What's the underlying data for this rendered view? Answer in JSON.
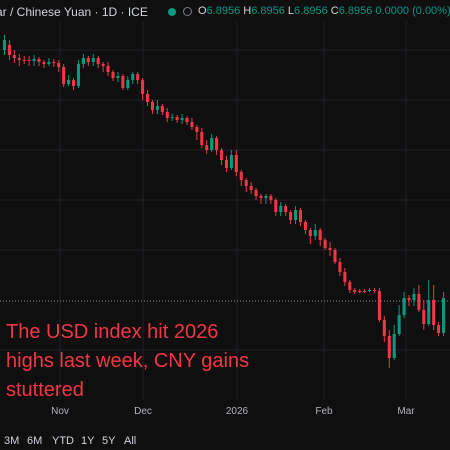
{
  "header": {
    "title": "ar / Chinese Yuan · 1D · ICE",
    "ohlc": [
      {
        "k": "O",
        "v": "6.8956"
      },
      {
        "k": "H",
        "v": "6.8956"
      },
      {
        "k": "L",
        "v": "6.8956"
      },
      {
        "k": "C",
        "v": "6.8956 0.0000 (0.00%)"
      }
    ],
    "icons": [
      "live-dot-icon",
      "status-ring-icon"
    ]
  },
  "annotation": {
    "lines": [
      "The USD index hit 2026",
      "highs last week, CNY gains",
      "stuttered"
    ],
    "color": "#f23645"
  },
  "range_buttons": [
    "3M",
    "6M",
    "YTD",
    "1Y",
    "5Y",
    "All"
  ],
  "colors": {
    "up": "#089981",
    "down": "#f23645",
    "bg": "#0f0f10",
    "grid": "#1e2026"
  },
  "chart_data": {
    "type": "candlestick",
    "x_ticks": [
      "Nov",
      "Dec",
      "2026",
      "Feb",
      "Mar"
    ],
    "last_close": 6.8956,
    "price_line_dotted": true,
    "grid": true,
    "candles": [
      [
        50,
        40,
        35,
        55
      ],
      [
        45,
        55,
        40,
        60
      ],
      [
        55,
        58,
        50,
        63
      ],
      [
        58,
        60,
        54,
        66
      ],
      [
        60,
        60,
        56,
        64
      ],
      [
        60,
        61,
        56,
        66
      ],
      [
        61,
        59,
        55,
        66
      ],
      [
        59,
        62,
        57,
        66
      ],
      [
        62,
        64,
        60,
        68
      ],
      [
        64,
        62,
        58,
        66
      ],
      [
        62,
        63,
        59,
        67
      ],
      [
        63,
        67,
        60,
        72
      ],
      [
        67,
        84,
        64,
        87
      ],
      [
        84,
        80,
        75,
        86
      ],
      [
        80,
        86,
        78,
        90
      ],
      [
        86,
        64,
        60,
        88
      ],
      [
        64,
        58,
        54,
        68
      ],
      [
        58,
        62,
        56,
        66
      ],
      [
        62,
        58,
        54,
        66
      ],
      [
        58,
        64,
        56,
        68
      ],
      [
        64,
        66,
        62,
        72
      ],
      [
        66,
        72,
        62,
        76
      ],
      [
        72,
        78,
        70,
        81
      ],
      [
        78,
        76,
        72,
        82
      ],
      [
        76,
        88,
        74,
        90
      ],
      [
        88,
        80,
        76,
        90
      ],
      [
        80,
        74,
        72,
        84
      ],
      [
        74,
        80,
        72,
        84
      ],
      [
        80,
        94,
        78,
        100
      ],
      [
        94,
        102,
        90,
        106
      ],
      [
        102,
        110,
        100,
        114
      ],
      [
        110,
        106,
        100,
        114
      ],
      [
        106,
        112,
        104,
        115
      ],
      [
        112,
        118,
        108,
        122
      ],
      [
        118,
        117,
        114,
        121
      ],
      [
        117,
        120,
        115,
        123
      ],
      [
        120,
        118,
        114,
        124
      ],
      [
        118,
        122,
        116,
        125
      ],
      [
        122,
        127,
        118,
        130
      ],
      [
        127,
        132,
        125,
        140
      ],
      [
        132,
        145,
        128,
        148
      ],
      [
        145,
        150,
        140,
        154
      ],
      [
        150,
        138,
        134,
        152
      ],
      [
        138,
        150,
        136,
        155
      ],
      [
        150,
        160,
        148,
        165
      ],
      [
        160,
        168,
        156,
        172
      ],
      [
        168,
        155,
        150,
        170
      ],
      [
        155,
        172,
        150,
        176
      ],
      [
        172,
        180,
        170,
        186
      ],
      [
        180,
        186,
        178,
        192
      ],
      [
        186,
        190,
        182,
        194
      ],
      [
        190,
        196,
        188,
        200
      ],
      [
        196,
        198,
        194,
        204
      ],
      [
        198,
        196,
        194,
        204
      ],
      [
        196,
        200,
        194,
        204
      ],
      [
        200,
        212,
        198,
        216
      ],
      [
        212,
        206,
        202,
        216
      ],
      [
        206,
        212,
        204,
        216
      ],
      [
        212,
        220,
        210,
        224
      ],
      [
        220,
        210,
        206,
        224
      ],
      [
        210,
        222,
        208,
        226
      ],
      [
        222,
        230,
        220,
        234
      ],
      [
        230,
        236,
        228,
        244
      ],
      [
        236,
        230,
        224,
        240
      ],
      [
        230,
        240,
        228,
        246
      ],
      [
        240,
        248,
        238,
        250
      ],
      [
        248,
        250,
        242,
        256
      ],
      [
        250,
        262,
        248,
        264
      ],
      [
        262,
        272,
        258,
        276
      ],
      [
        272,
        282,
        268,
        286
      ],
      [
        282,
        290,
        280,
        293
      ],
      [
        290,
        292,
        288,
        294
      ],
      [
        291,
        291,
        289,
        293
      ],
      [
        291,
        291,
        289,
        293
      ],
      [
        291,
        290,
        288,
        292
      ],
      [
        290,
        291,
        288,
        293
      ],
      [
        291,
        320,
        288,
        322
      ],
      [
        320,
        336,
        316,
        342
      ],
      [
        336,
        358,
        330,
        368
      ],
      [
        358,
        334,
        325,
        360
      ],
      [
        334,
        315,
        305,
        336
      ],
      [
        315,
        298,
        292,
        318
      ],
      [
        298,
        300,
        295,
        306
      ],
      [
        300,
        294,
        288,
        306
      ],
      [
        294,
        310,
        285,
        312
      ],
      [
        310,
        324,
        300,
        330
      ],
      [
        324,
        300,
        280,
        326
      ],
      [
        300,
        325,
        285,
        330
      ],
      [
        325,
        333,
        322,
        336
      ],
      [
        333,
        298,
        292,
        336
      ]
    ]
  }
}
